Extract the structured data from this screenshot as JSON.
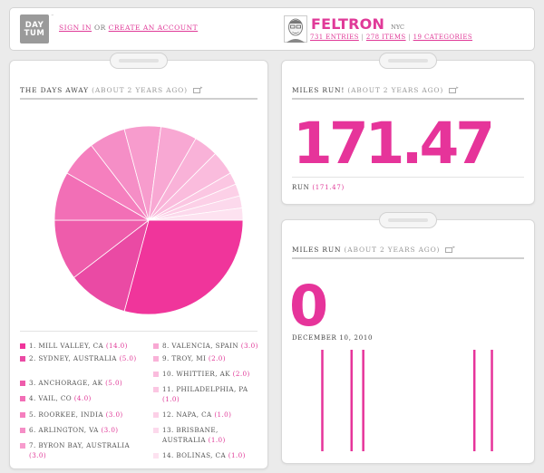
{
  "header": {
    "logo_line1": "DAY",
    "logo_line2": "TUM",
    "logo_tm": "™",
    "signin_label": "SIGN IN",
    "or_label": "OR",
    "create_label": "CREATE AN ACCOUNT",
    "profile_name": "FELTRON",
    "profile_city": "NYC",
    "entries_label": "731 ENTRIES",
    "items_label": "278 ITEMS",
    "categories_label": "19 CATEGORIES",
    "separator": "|"
  },
  "days_away": {
    "title": "THE DAYS AWAY",
    "subtitle": "(ABOUT 2 YEARS AGO)",
    "legend": [
      {
        "label": "1. MILL VALLEY, CA",
        "value": "(14.0)",
        "color": "#f0359b"
      },
      {
        "label": "2. SYDNEY, AUSTRALIA",
        "value": "(5.0)",
        "color": "#ea4aa4"
      },
      {
        "label": "3. ANCHORAGE, AK",
        "value": "(5.0)",
        "color": "#ee5cab"
      },
      {
        "label": "4. VAIL, CO",
        "value": "(4.0)",
        "color": "#f26fb6"
      },
      {
        "label": "5. ROORKEE, INDIA",
        "value": "(3.0)",
        "color": "#f57fbe"
      },
      {
        "label": "6. ARLINGTON, VA",
        "value": "(3.0)",
        "color": "#f58ec6"
      },
      {
        "label": "7. BYRON BAY, AUSTRALIA",
        "value": "(3.0)",
        "color": "#f79ccd"
      },
      {
        "label": "8. VALENCIA, SPAIN",
        "value": "(3.0)",
        "color": "#f8a8d3"
      },
      {
        "label": "9. TROY, MI",
        "value": "(2.0)",
        "color": "#f9b2d8"
      },
      {
        "label": "10. WHITTIER, AK",
        "value": "(2.0)",
        "color": "#fabcdd"
      },
      {
        "label": "11. PHILADELPHIA, PA",
        "value": "(1.0)",
        "color": "#fbc6e2"
      },
      {
        "label": "12. NAPA, CA",
        "value": "(1.0)",
        "color": "#fcd0e7"
      },
      {
        "label": "13. BRISBANE, AUSTRALIA",
        "value": "(1.0)",
        "color": "#fcd9ec"
      },
      {
        "label": "14. BOLINAS, CA",
        "value": "(1.0)",
        "color": "#fde2f0"
      }
    ]
  },
  "miles_run_total": {
    "title": "MILES RUN!",
    "subtitle": "(ABOUT 2 YEARS AGO)",
    "big_value": "171.47",
    "caption_label": "RUN",
    "caption_value": "(171.47)"
  },
  "miles_run_daily": {
    "title": "MILES RUN",
    "subtitle": "(ABOUT 2 YEARS AGO)",
    "big_value": "0",
    "date_label": "DECEMBER 10, 2010"
  },
  "chart_data": [
    {
      "type": "pie",
      "title": "THE DAYS AWAY",
      "categories": [
        "1. MILL VALLEY, CA",
        "2. SYDNEY, AUSTRALIA",
        "3. ANCHORAGE, AK",
        "4. VAIL, CO",
        "5. ROORKEE, INDIA",
        "6. ARLINGTON, VA",
        "7. BYRON BAY, AUSTRALIA",
        "8. VALENCIA, SPAIN",
        "9. TROY, MI",
        "10. WHITTIER, AK",
        "11. PHILADELPHIA, PA",
        "12. NAPA, CA",
        "13. BRISBANE, AUSTRALIA",
        "14. BOLINAS, CA"
      ],
      "values": [
        14,
        5,
        5,
        4,
        3,
        3,
        3,
        3,
        2,
        2,
        1,
        1,
        1,
        1
      ],
      "colors": [
        "#f0359b",
        "#ea4aa4",
        "#ee5cab",
        "#f26fb6",
        "#f57fbe",
        "#f58ec6",
        "#f79ccd",
        "#f8a8d3",
        "#f9b2d8",
        "#fabcdd",
        "#fbc6e2",
        "#fcd0e7",
        "#fcd9ec",
        "#fde2f0"
      ]
    },
    {
      "type": "bar",
      "title": "MILES RUN",
      "bar_color": "#e6349a",
      "values": [
        0,
        0,
        0,
        0,
        0,
        1,
        0,
        0,
        0,
        0,
        1,
        0,
        1,
        0,
        0,
        0,
        0,
        0,
        0,
        0,
        0,
        0,
        0,
        0,
        0,
        0,
        0,
        0,
        0,
        0,
        0,
        1,
        0,
        0,
        1,
        0,
        0,
        0,
        0,
        0
      ]
    }
  ]
}
